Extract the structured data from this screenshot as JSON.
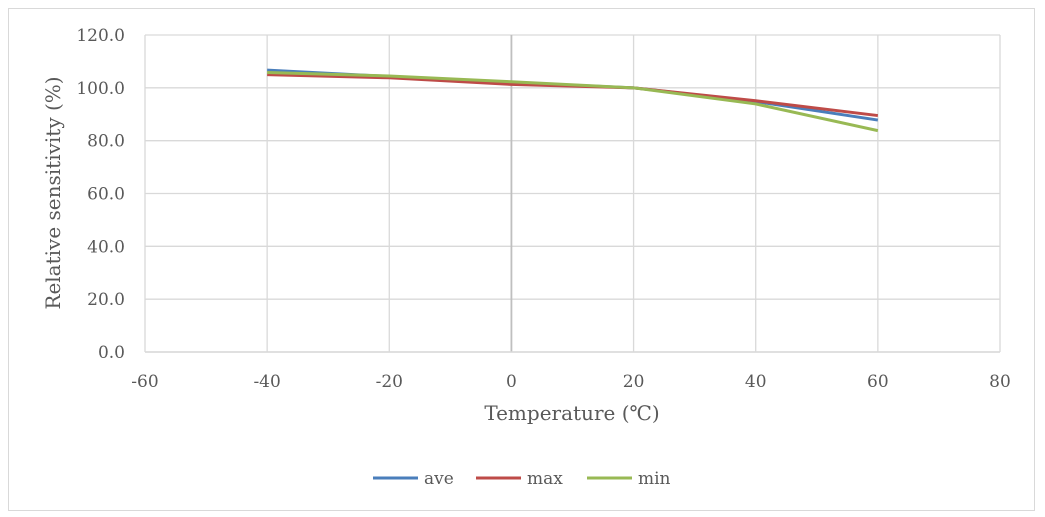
{
  "chart_data": {
    "type": "line",
    "title": "",
    "xlabel": "Temperature (℃)",
    "ylabel": "Relative sensitivity (%)",
    "xlim": [
      -60,
      80
    ],
    "ylim": [
      0,
      120
    ],
    "xticks": [
      -60,
      -40,
      -20,
      0,
      20,
      40,
      60,
      80
    ],
    "yticks": [
      "0.0",
      "20.0",
      "40.0",
      "60.0",
      "80.0",
      "100.0",
      "120.0"
    ],
    "grid": true,
    "legend": "bottom",
    "x": [
      -40,
      -20,
      0,
      20,
      40,
      60
    ],
    "series": [
      {
        "name": "ave",
        "color": "#4a7ebb",
        "values": [
          106.7,
          104.3,
          102.0,
          100.0,
          94.8,
          87.8
        ]
      },
      {
        "name": "max",
        "color": "#be4b48",
        "values": [
          105.0,
          103.8,
          101.3,
          100.0,
          95.1,
          89.5
        ]
      },
      {
        "name": "min",
        "color": "#98b954",
        "values": [
          105.8,
          104.5,
          102.3,
          100.0,
          93.9,
          83.8
        ]
      }
    ]
  }
}
